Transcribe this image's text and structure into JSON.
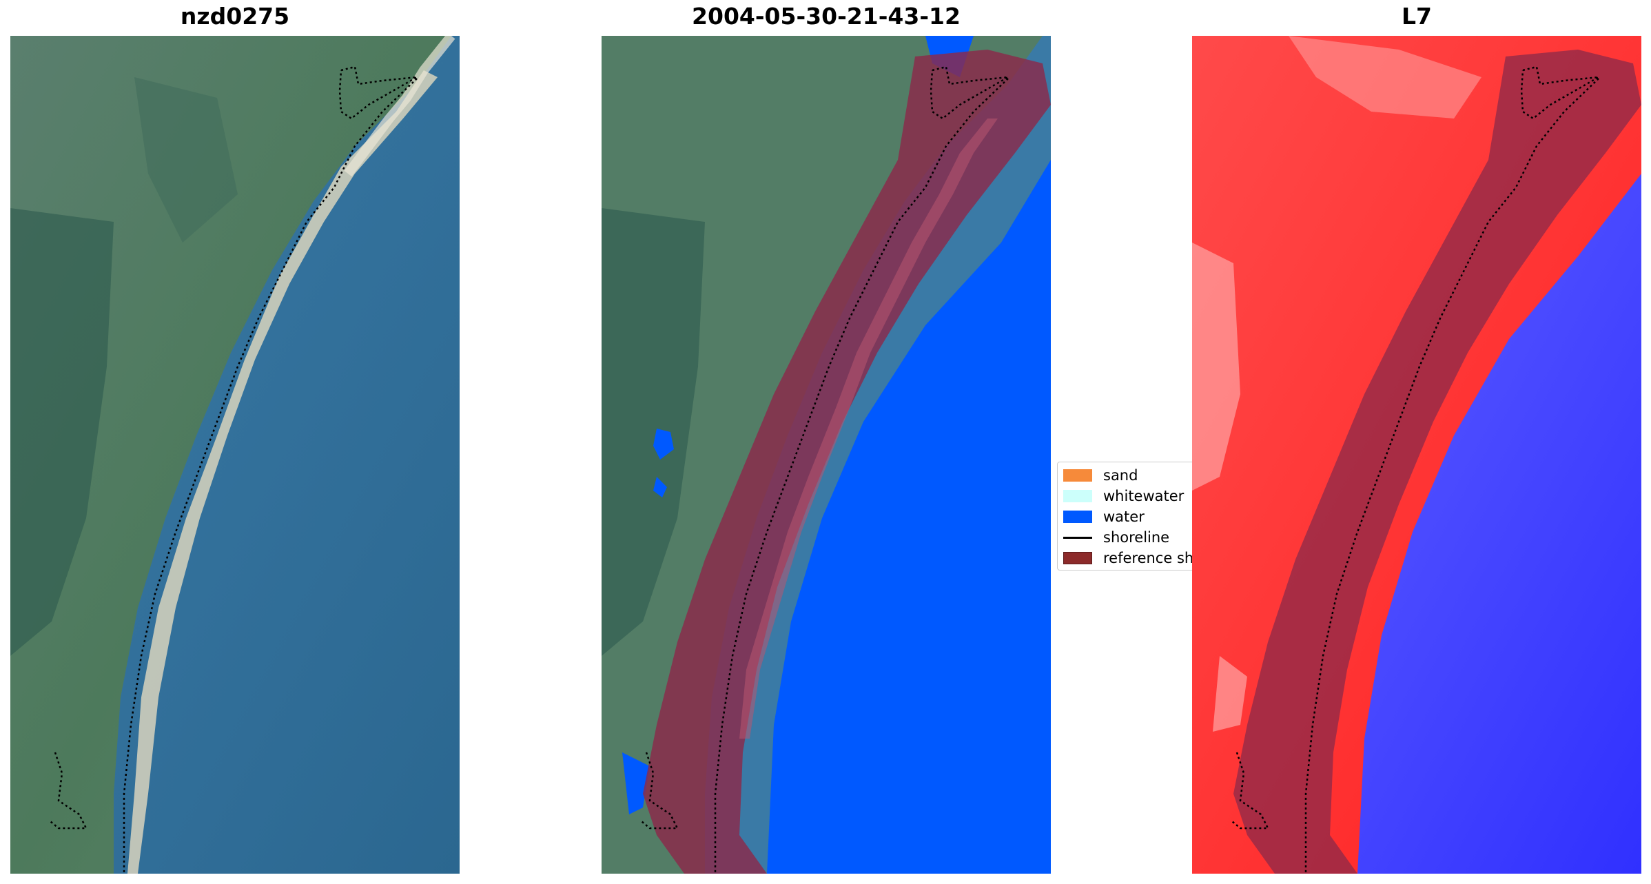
{
  "panels": [
    {
      "title": "nzd0275"
    },
    {
      "title": "2004-05-30-21-43-12"
    },
    {
      "title": "L7"
    }
  ],
  "legend": {
    "items": [
      {
        "label": "sand",
        "color": "#f68a3a"
      },
      {
        "label": "whitewater",
        "color": "#ccfffb"
      },
      {
        "label": "water",
        "color": "#0059ff"
      },
      {
        "label": "shoreline",
        "color": "#000000"
      },
      {
        "label": "reference sh",
        "color": "#8c2a2a"
      }
    ]
  },
  "colors": {
    "land_green": "#4f7a60",
    "sea_blue": "#2f6f9a",
    "beach_sand": "#d8d3bd",
    "buffer_overlay": "#8b2a4a",
    "index_red": "#ff1a1a",
    "index_blue": "#3a3aff"
  }
}
